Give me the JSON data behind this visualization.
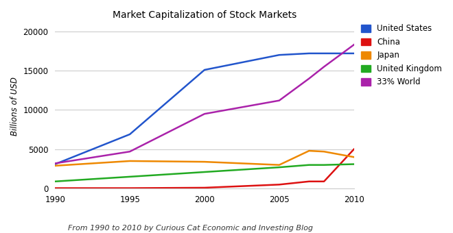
{
  "title": "Market Capitalization of Stock Markets",
  "subtitle": "From 1990 to 2010 by Curious Cat Economic and Investing Blog",
  "ylabel": "Billions of USD",
  "years": [
    1990,
    1995,
    2000,
    2005,
    2007,
    2008,
    2010
  ],
  "xticks": [
    1990,
    1995,
    2000,
    2005,
    2010
  ],
  "series": {
    "United States": {
      "values": [
        3100,
        6900,
        15100,
        17000,
        17200,
        17200,
        17200
      ],
      "color": "#2255cc"
    },
    "China": {
      "values": [
        50,
        50,
        100,
        500,
        900,
        900,
        5000
      ],
      "color": "#dd1111"
    },
    "Japan": {
      "values": [
        2900,
        3500,
        3400,
        3000,
        4800,
        4700,
        4000
      ],
      "color": "#ee8800"
    },
    "United Kingdom": {
      "values": [
        900,
        1500,
        2100,
        2700,
        3000,
        3000,
        3100
      ],
      "color": "#22aa22"
    },
    "33% World": {
      "values": [
        3200,
        4700,
        9500,
        11200,
        14000,
        15500,
        18300
      ],
      "color": "#aa22aa"
    }
  },
  "ylim": [
    0,
    21000
  ],
  "yticks": [
    0,
    5000,
    10000,
    15000,
    20000
  ],
  "background_color": "#ffffff",
  "grid_color": "#cccccc"
}
